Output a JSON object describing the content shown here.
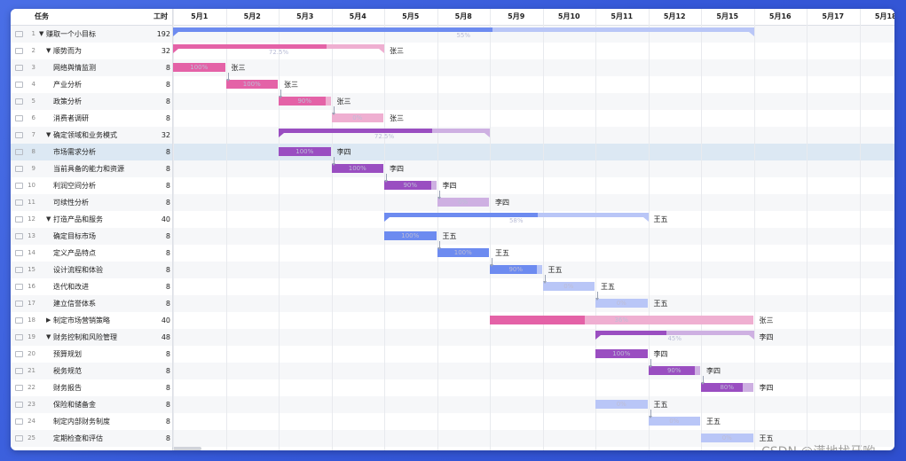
{
  "header": {
    "task_col": "任务",
    "hours_col": "工时"
  },
  "days": [
    "5月1",
    "5月2",
    "5月3",
    "5月4",
    "5月5",
    "5月8",
    "5月9",
    "5月10",
    "5月11",
    "5月12",
    "5月15",
    "5月16",
    "5月17",
    "5月18"
  ],
  "colors": {
    "pink": "#e462a7",
    "pink_light": "#efafd1",
    "purple": "#9a4ec1",
    "purple_light": "#ceb0e2",
    "blue": "#6d8bf0",
    "blue_light": "#b9c6f7",
    "selected_row": "#dce8f3",
    "background": "#3558d8"
  },
  "tasks": [
    {
      "num": "1",
      "name": "赚取一个小目标",
      "hours": "192",
      "level": 0,
      "toggle": "▼",
      "kind": "group",
      "start": 0,
      "dur": 11,
      "progress": 55,
      "pct": "55%",
      "color": "blue",
      "resource": ""
    },
    {
      "num": "2",
      "name": "顺势而为",
      "hours": "32",
      "level": 1,
      "toggle": "▼",
      "kind": "group",
      "start": 0,
      "dur": 4,
      "progress": 72.5,
      "pct": "72.5%",
      "color": "pink",
      "resource": "张三"
    },
    {
      "num": "3",
      "name": "网络舆情监测",
      "hours": "8",
      "level": 2,
      "kind": "task",
      "start": 0,
      "dur": 1,
      "progress": 100,
      "pct": "100%",
      "color": "pink",
      "resource": "张三"
    },
    {
      "num": "4",
      "name": "产业分析",
      "hours": "8",
      "level": 2,
      "kind": "task",
      "start": 1,
      "dur": 1,
      "progress": 100,
      "pct": "100%",
      "color": "pink",
      "resource": "张三"
    },
    {
      "num": "5",
      "name": "政策分析",
      "hours": "8",
      "level": 2,
      "kind": "task",
      "start": 2,
      "dur": 1,
      "progress": 90,
      "pct": "90%",
      "color": "pink",
      "resource": "张三"
    },
    {
      "num": "6",
      "name": "消费者调研",
      "hours": "8",
      "level": 2,
      "kind": "task",
      "start": 3,
      "dur": 1,
      "progress": 0,
      "pct": "0%",
      "color": "pink",
      "resource": "张三"
    },
    {
      "num": "7",
      "name": "确定领域和业务模式",
      "hours": "32",
      "level": 1,
      "toggle": "▼",
      "kind": "group",
      "start": 2,
      "dur": 4,
      "progress": 72.5,
      "pct": "72.5%",
      "color": "purple",
      "resource": ""
    },
    {
      "num": "8",
      "name": "市场需求分析",
      "hours": "8",
      "level": 2,
      "kind": "task",
      "start": 2,
      "dur": 1,
      "progress": 100,
      "pct": "100%",
      "color": "purple",
      "resource": "李四",
      "selected": true
    },
    {
      "num": "9",
      "name": "当前具备的能力和资源",
      "hours": "8",
      "level": 2,
      "kind": "task",
      "start": 3,
      "dur": 1,
      "progress": 100,
      "pct": "100%",
      "color": "purple",
      "resource": "李四"
    },
    {
      "num": "10",
      "name": "利润空间分析",
      "hours": "8",
      "level": 2,
      "kind": "task",
      "start": 4,
      "dur": 1,
      "progress": 90,
      "pct": "90%",
      "color": "purple",
      "resource": "李四"
    },
    {
      "num": "11",
      "name": "可续性分析",
      "hours": "8",
      "level": 2,
      "kind": "task",
      "start": 5,
      "dur": 1,
      "progress": 0,
      "pct": "0%",
      "color": "purple",
      "resource": "李四"
    },
    {
      "num": "12",
      "name": "打造产品和服务",
      "hours": "40",
      "level": 1,
      "toggle": "▼",
      "kind": "group",
      "start": 4,
      "dur": 5,
      "progress": 58,
      "pct": "58%",
      "color": "blue",
      "resource": "王五"
    },
    {
      "num": "13",
      "name": "确定目标市场",
      "hours": "8",
      "level": 2,
      "kind": "task",
      "start": 4,
      "dur": 1,
      "progress": 100,
      "pct": "100%",
      "color": "blue",
      "resource": "王五"
    },
    {
      "num": "14",
      "name": "定义产品特点",
      "hours": "8",
      "level": 2,
      "kind": "task",
      "start": 5,
      "dur": 1,
      "progress": 100,
      "pct": "100%",
      "color": "blue",
      "resource": "王五"
    },
    {
      "num": "15",
      "name": "设计流程和体验",
      "hours": "8",
      "level": 2,
      "kind": "task",
      "start": 6,
      "dur": 1,
      "progress": 90,
      "pct": "90%",
      "color": "blue",
      "resource": "王五"
    },
    {
      "num": "16",
      "name": "迭代和改进",
      "hours": "8",
      "level": 2,
      "kind": "task",
      "start": 7,
      "dur": 1,
      "progress": 0,
      "pct": "0%",
      "color": "blue",
      "resource": "王五"
    },
    {
      "num": "17",
      "name": "建立信誉体系",
      "hours": "8",
      "level": 2,
      "kind": "task",
      "start": 8,
      "dur": 1,
      "progress": 0,
      "pct": "0%",
      "color": "blue",
      "resource": "王五"
    },
    {
      "num": "18",
      "name": "制定市场营销策略",
      "hours": "40",
      "level": 1,
      "toggle": "▶",
      "kind": "task",
      "start": 6,
      "dur": 5,
      "progress": 36,
      "pct": "36%",
      "color": "pink",
      "resource": "张三"
    },
    {
      "num": "19",
      "name": "财务控制和风险管理",
      "hours": "48",
      "level": 1,
      "toggle": "▼",
      "kind": "group",
      "start": 8,
      "dur": 3,
      "progress": 45,
      "pct": "45%",
      "color": "purple",
      "resource": "李四"
    },
    {
      "num": "20",
      "name": "预算规划",
      "hours": "8",
      "level": 2,
      "kind": "task",
      "start": 8,
      "dur": 1,
      "progress": 100,
      "pct": "100%",
      "color": "purple",
      "resource": "李四"
    },
    {
      "num": "21",
      "name": "税务规范",
      "hours": "8",
      "level": 2,
      "kind": "task",
      "start": 9,
      "dur": 1,
      "progress": 90,
      "pct": "90%",
      "color": "purple",
      "resource": "李四"
    },
    {
      "num": "22",
      "name": "财务报告",
      "hours": "8",
      "level": 2,
      "kind": "task",
      "start": 10,
      "dur": 1,
      "progress": 80,
      "pct": "80%",
      "color": "purple",
      "resource": "李四"
    },
    {
      "num": "23",
      "name": "保险和储备金",
      "hours": "8",
      "level": 2,
      "kind": "task",
      "start": 8,
      "dur": 1,
      "progress": 0,
      "pct": "0%",
      "color": "blue",
      "resource": "王五"
    },
    {
      "num": "24",
      "name": "制定内部财务制度",
      "hours": "8",
      "level": 2,
      "kind": "task",
      "start": 9,
      "dur": 1,
      "progress": 0,
      "pct": "0%",
      "color": "blue",
      "resource": "王五"
    },
    {
      "num": "25",
      "name": "定期检查和评估",
      "hours": "8",
      "level": 2,
      "kind": "task",
      "start": 10,
      "dur": 1,
      "progress": 0,
      "pct": "0%",
      "color": "blue",
      "resource": "王五"
    }
  ],
  "dependencies": [
    [
      2,
      3
    ],
    [
      3,
      4
    ],
    [
      4,
      5
    ],
    [
      7,
      8
    ],
    [
      8,
      9
    ],
    [
      9,
      10
    ],
    [
      12,
      13
    ],
    [
      13,
      14
    ],
    [
      14,
      15
    ],
    [
      15,
      16
    ],
    [
      19,
      20
    ],
    [
      20,
      21
    ],
    [
      22,
      23
    ]
  ],
  "watermark": "CSDN @满地找牙哟"
}
